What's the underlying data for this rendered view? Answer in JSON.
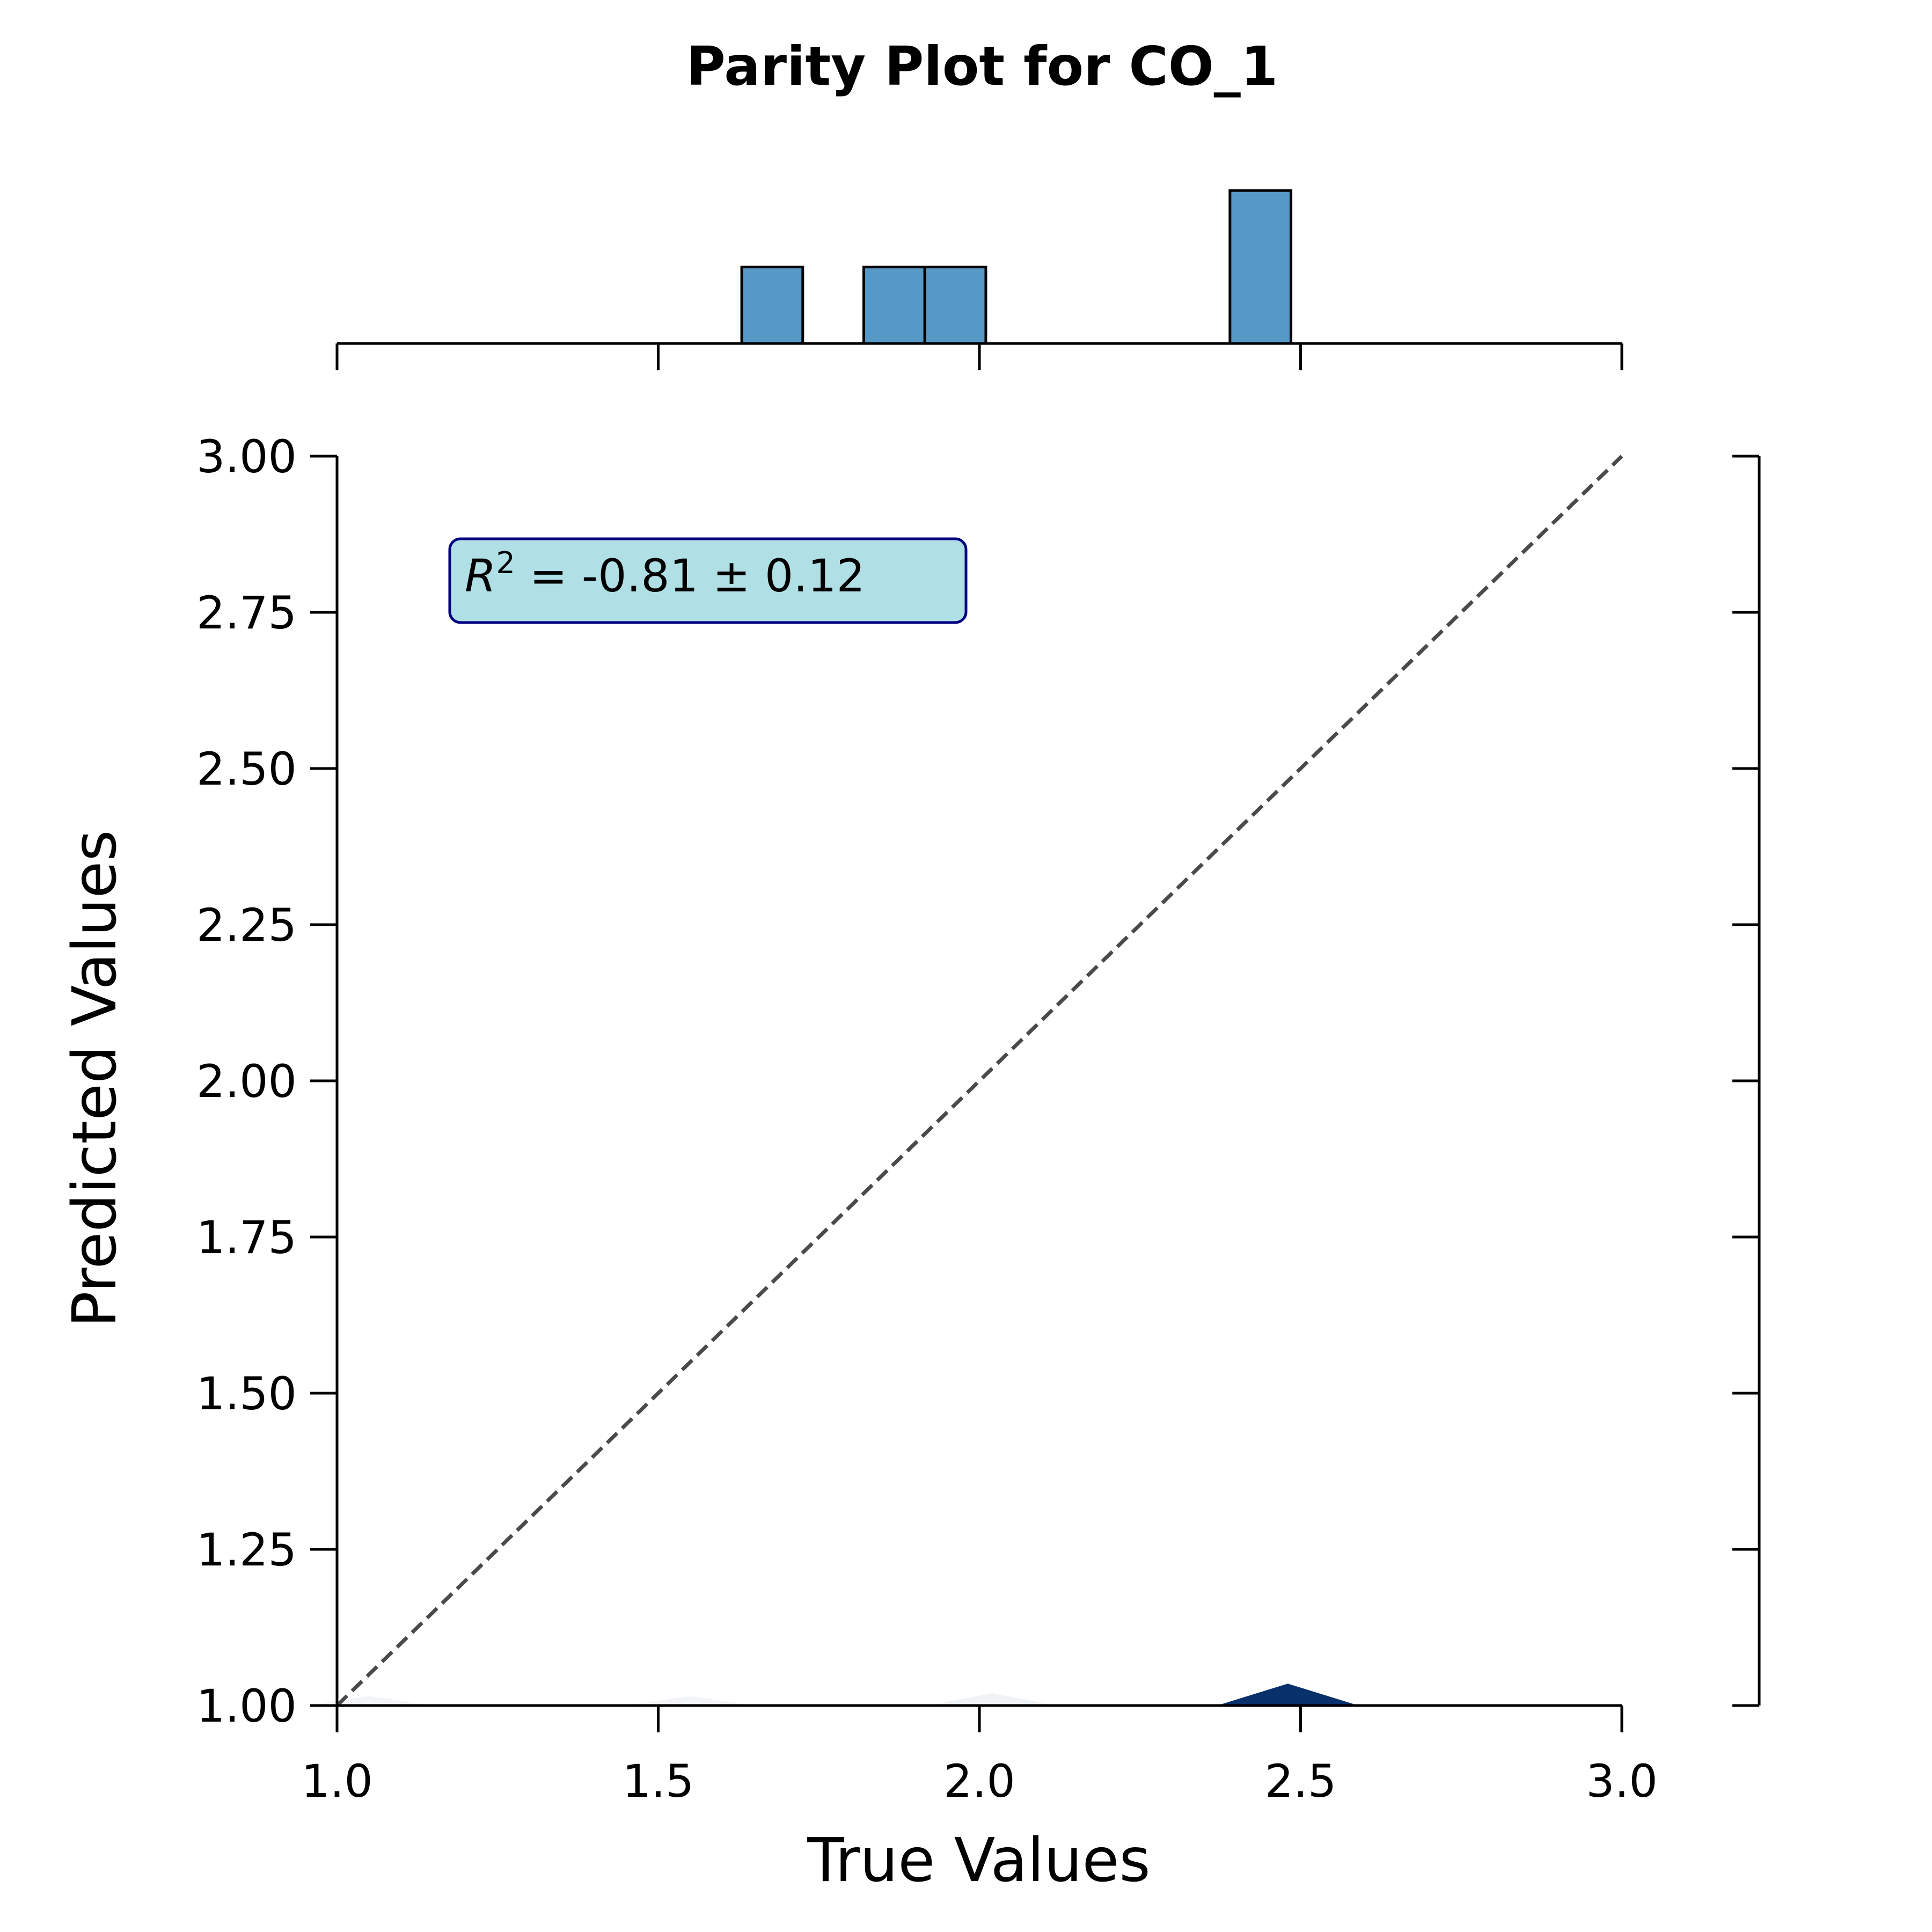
{
  "chart_data": {
    "type": "scatter",
    "title": "Parity Plot for CO_1",
    "xlabel": "True Values",
    "ylabel": "Predicted Values",
    "xlim": [
      1.0,
      3.0
    ],
    "ylim": [
      1.0,
      3.0
    ],
    "x_ticks": [
      "1.0",
      "1.5",
      "2.0",
      "2.5",
      "3.0"
    ],
    "y_ticks": [
      "1.00",
      "1.25",
      "1.50",
      "1.75",
      "2.00",
      "2.25",
      "2.50",
      "2.75",
      "3.00"
    ],
    "annotation": {
      "r2_symbol": "R",
      "r2_exponent": "2",
      "r2_value": " = -0.81 ± 0.12"
    },
    "parity_line": {
      "from": [
        1.0,
        1.0
      ],
      "to": [
        3.0,
        3.0
      ],
      "style": "dashed"
    },
    "top_histogram": {
      "bins": [
        {
          "x0": 1.63,
          "x1": 1.725,
          "count": 1
        },
        {
          "x0": 1.82,
          "x1": 1.915,
          "count": 1
        },
        {
          "x0": 1.915,
          "x1": 2.01,
          "count": 1
        },
        {
          "x0": 2.39,
          "x1": 2.485,
          "count": 2
        }
      ],
      "max_count": 2
    },
    "density_peaks": [
      {
        "x": 1.05,
        "height": 0.015,
        "width": 0.2,
        "opacity": 0.05
      },
      {
        "x": 1.55,
        "height": 0.015,
        "width": 0.2,
        "opacity": 0.05
      },
      {
        "x": 2.02,
        "height": 0.02,
        "width": 0.2,
        "opacity": 0.06
      },
      {
        "x": 2.48,
        "height": 0.035,
        "width": 0.22,
        "opacity": 1.0
      }
    ],
    "colors": {
      "histogram_fill": "#5699c6",
      "histogram_edge": "#000000",
      "density": "#08306b",
      "parity_line": "#4a4a4a",
      "annotation_fill": "#b0e0e6",
      "annotation_edge": "#000080"
    },
    "grid": false,
    "legend": "none"
  }
}
